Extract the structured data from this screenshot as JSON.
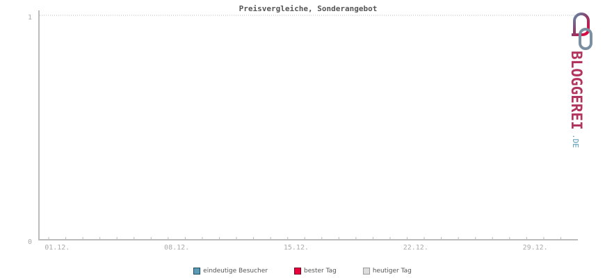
{
  "chart_data": {
    "type": "line",
    "title": "Preisvergleiche, Sonderangebot",
    "x_tick_labels": [
      "01.12.",
      "08.12.",
      "15.12.",
      "22.12.",
      "29.12."
    ],
    "days_in_range": 31,
    "ylim": [
      0,
      1
    ],
    "y_tick_labels": [
      "0",
      "1"
    ],
    "grid": "dotted line at top value",
    "series": [
      {
        "name": "eindeutige Besucher",
        "color": "#5b9bb5",
        "values": []
      },
      {
        "name": "bester Tag",
        "color": "#e8003d",
        "values": []
      },
      {
        "name": "heutiger Tag",
        "color": "#cccccc",
        "values": []
      }
    ],
    "legend_placement": "bottom"
  },
  "logo": {
    "text": "BLOGGEREI",
    "suffix": ".DE"
  }
}
